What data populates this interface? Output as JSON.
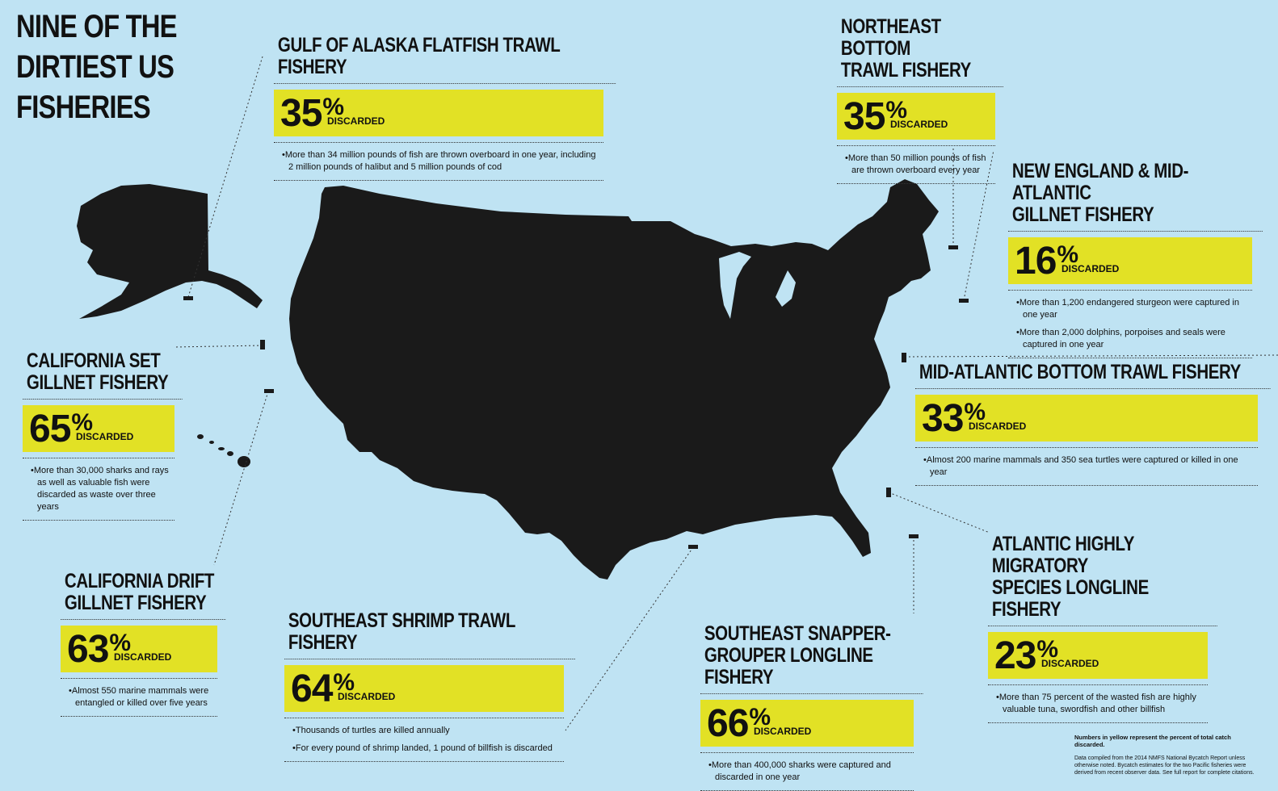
{
  "title": "NINE OF THE\nDIRTIEST US\nFISHERIES",
  "discarded_label": "DISCARDED",
  "colors": {
    "background": "#bfe3f3",
    "highlight": "#e2e125",
    "land": "#1a1a1a"
  },
  "fisheries": [
    {
      "name": "GULF OF ALASKA FLATFISH TRAWL FISHERY",
      "percent": "35",
      "notes": [
        "More than 34 million pounds of fish are thrown overboard in one year, including 2 million pounds of halibut and 5 million pounds of cod"
      ]
    },
    {
      "name": "NORTHEAST BOTTOM\nTRAWL FISHERY",
      "percent": "35",
      "notes": [
        "More than 50 million pounds of fish are thrown overboard every year"
      ]
    },
    {
      "name": "NEW ENGLAND & MID-ATLANTIC\nGILLNET FISHERY",
      "percent": "16",
      "notes": [
        "More than 1,200 endangered sturgeon were captured in one year",
        "More than 2,000 dolphins, porpoises and seals were captured in one year"
      ]
    },
    {
      "name": "CALIFORNIA SET\nGILLNET FISHERY",
      "percent": "65",
      "notes": [
        "More than 30,000 sharks and rays as well as valuable fish were discarded as waste over three years"
      ]
    },
    {
      "name": "MID-ATLANTIC BOTTOM TRAWL FISHERY",
      "percent": "33",
      "notes": [
        "Almost 200 marine mammals and 350 sea turtles were captured or killed in one year"
      ]
    },
    {
      "name": "CALIFORNIA DRIFT\nGILLNET FISHERY",
      "percent": "63",
      "notes": [
        "Almost 550 marine mammals were entangled or killed over five years"
      ]
    },
    {
      "name": "SOUTHEAST SHRIMP TRAWL FISHERY",
      "percent": "64",
      "notes": [
        "Thousands of turtles are killed annually",
        "For every pound of shrimp landed, 1 pound of billfish is discarded"
      ]
    },
    {
      "name": "SOUTHEAST SNAPPER-\nGROUPER LONGLINE FISHERY",
      "percent": "66",
      "notes": [
        "More than 400,000 sharks were captured and discarded in one year"
      ]
    },
    {
      "name": "ATLANTIC HIGHLY MIGRATORY\nSPECIES LONGLINE FISHERY",
      "percent": "23",
      "notes": [
        "More than 75 percent of the wasted fish are highly valuable tuna, swordfish and other billfish"
      ]
    }
  ],
  "footnote": {
    "bold": "Numbers in yellow represent the percent of total catch discarded.",
    "text": "Data compiled from the 2014 NMFS National Bycatch Report unless otherwise noted. Bycatch estimates for the two Pacific fisheries were derived from recent observer data. See full report for complete citations."
  }
}
